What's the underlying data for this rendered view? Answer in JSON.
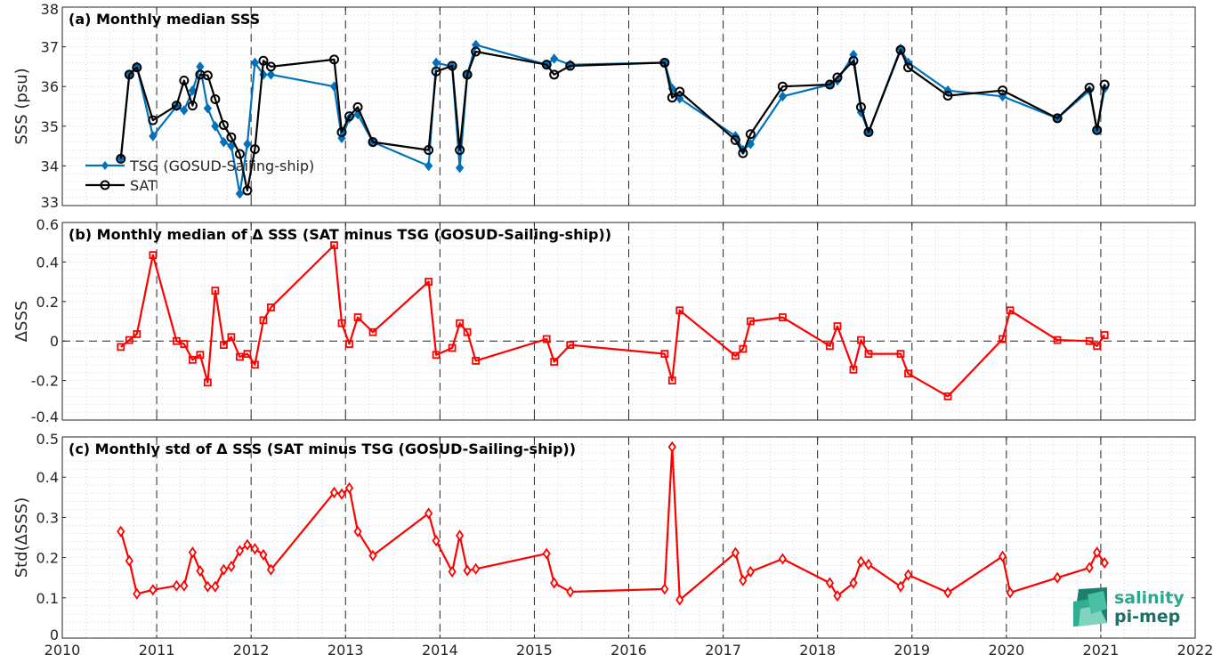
{
  "chart_data": [
    {
      "type": "line",
      "title": "(a) Monthly median SSS",
      "xlabel": "",
      "ylabel": "SSS (psu)",
      "xlim": [
        2010,
        2022
      ],
      "ylim": [
        33,
        38
      ],
      "xticks": [
        "2010",
        "2011",
        "2012",
        "2013",
        "2014",
        "2015",
        "2016",
        "2017",
        "2018",
        "2019",
        "2020",
        "2021",
        "2022"
      ],
      "yticks": [
        "33",
        "34",
        "35",
        "36",
        "37",
        "38"
      ],
      "grid": true,
      "legend_position": "bottom-left",
      "series": [
        {
          "name": "TSG (GOSUD-Sailing-ship)",
          "color": "#0072bd",
          "marker": "diamond",
          "x": [
            2010.62,
            2010.71,
            2010.79,
            2010.96,
            2011.21,
            2011.29,
            2011.38,
            2011.46,
            2011.54,
            2011.62,
            2011.71,
            2011.79,
            2011.88,
            2011.96,
            2012.04,
            2012.13,
            2012.21,
            2012.88,
            2012.96,
            2013.04,
            2013.13,
            2013.29,
            2013.88,
            2013.96,
            2014.13,
            2014.21,
            2014.29,
            2014.38,
            2015.13,
            2015.21,
            2015.38,
            2016.38,
            2016.46,
            2016.54,
            2017.13,
            2017.21,
            2017.29,
            2017.63,
            2018.13,
            2018.21,
            2018.38,
            2018.46,
            2018.54,
            2018.88,
            2018.96,
            2019.38,
            2019.96,
            2020.54,
            2020.88,
            2020.96,
            2021.04
          ],
          "y": [
            34.2,
            36.3,
            36.5,
            34.75,
            35.5,
            35.4,
            35.9,
            36.5,
            35.45,
            35.0,
            34.6,
            34.5,
            33.3,
            34.55,
            36.6,
            36.3,
            36.3,
            36.0,
            34.7,
            35.2,
            35.3,
            34.6,
            34.0,
            36.6,
            36.5,
            33.95,
            36.3,
            37.05,
            36.55,
            36.7,
            36.55,
            36.6,
            35.95,
            35.7,
            34.75,
            34.4,
            34.55,
            35.75,
            36.05,
            36.15,
            36.8,
            35.35,
            34.85,
            36.95,
            36.6,
            35.9,
            35.75,
            35.2,
            35.9,
            34.9,
            35.95
          ]
        },
        {
          "name": "SAT",
          "color": "#000000",
          "marker": "circle",
          "x": [
            2010.62,
            2010.71,
            2010.79,
            2010.96,
            2011.21,
            2011.29,
            2011.38,
            2011.46,
            2011.54,
            2011.62,
            2011.71,
            2011.79,
            2011.88,
            2011.96,
            2012.04,
            2012.13,
            2012.21,
            2012.88,
            2012.96,
            2013.04,
            2013.13,
            2013.29,
            2013.88,
            2013.96,
            2014.13,
            2014.21,
            2014.29,
            2014.38,
            2015.13,
            2015.21,
            2015.38,
            2016.38,
            2016.46,
            2016.54,
            2017.13,
            2017.21,
            2017.29,
            2017.63,
            2018.13,
            2018.21,
            2018.38,
            2018.46,
            2018.54,
            2018.88,
            2018.96,
            2019.38,
            2019.96,
            2020.54,
            2020.88,
            2020.96,
            2021.04
          ],
          "y": [
            34.18,
            36.3,
            36.48,
            35.15,
            35.52,
            36.15,
            35.52,
            36.3,
            36.28,
            35.68,
            35.03,
            34.72,
            34.3,
            33.38,
            34.42,
            36.65,
            36.5,
            36.68,
            34.85,
            35.25,
            35.48,
            34.6,
            34.4,
            36.38,
            36.52,
            34.4,
            36.3,
            36.88,
            36.55,
            36.3,
            36.52,
            36.6,
            35.72,
            35.87,
            34.65,
            34.32,
            34.8,
            36.0,
            36.05,
            36.23,
            36.65,
            35.48,
            34.85,
            36.92,
            36.48,
            35.77,
            35.9,
            35.2,
            35.97,
            34.9,
            36.05
          ]
        }
      ]
    },
    {
      "type": "line",
      "title": "(b) Monthly median of Δ SSS (SAT minus TSG (GOSUD-Sailing-ship))",
      "xlabel": "",
      "ylabel": "ΔSSS",
      "xlim": [
        2010,
        2022
      ],
      "ylim": [
        -0.4,
        0.6
      ],
      "xticks": [
        "2010",
        "2011",
        "2012",
        "2013",
        "2014",
        "2015",
        "2016",
        "2017",
        "2018",
        "2019",
        "2020",
        "2021",
        "2022"
      ],
      "yticks": [
        "-0.4",
        "-0.2",
        "0",
        "0.2",
        "0.4",
        "0.6"
      ],
      "grid": true,
      "series": [
        {
          "color": "#ff0000",
          "marker": "square",
          "x": [
            2010.62,
            2010.71,
            2010.79,
            2010.96,
            2011.21,
            2011.29,
            2011.38,
            2011.46,
            2011.54,
            2011.62,
            2011.71,
            2011.79,
            2011.88,
            2011.96,
            2012.04,
            2012.13,
            2012.21,
            2012.88,
            2012.96,
            2013.04,
            2013.13,
            2013.29,
            2013.88,
            2013.96,
            2014.13,
            2014.21,
            2014.29,
            2014.38,
            2015.13,
            2015.21,
            2015.38,
            2016.38,
            2016.46,
            2016.54,
            2017.13,
            2017.21,
            2017.29,
            2017.63,
            2018.13,
            2018.21,
            2018.38,
            2018.46,
            2018.54,
            2018.88,
            2018.96,
            2019.38,
            2019.96,
            2020.04,
            2020.54,
            2020.88,
            2020.96,
            2021.04
          ],
          "y": [
            -0.03,
            0.005,
            0.035,
            0.435,
            0.0,
            -0.015,
            -0.095,
            -0.07,
            -0.21,
            0.255,
            -0.02,
            0.02,
            -0.08,
            -0.065,
            -0.12,
            0.105,
            0.17,
            0.485,
            0.09,
            -0.015,
            0.12,
            0.045,
            0.3,
            -0.07,
            -0.035,
            0.09,
            0.045,
            -0.1,
            0.01,
            -0.105,
            -0.02,
            -0.065,
            -0.2,
            0.155,
            -0.075,
            -0.04,
            0.1,
            0.12,
            -0.025,
            0.075,
            -0.145,
            0.005,
            -0.065,
            -0.065,
            -0.165,
            -0.28,
            0.01,
            0.155,
            0.005,
            0.0,
            -0.025,
            0.03
          ]
        }
      ]
    },
    {
      "type": "line",
      "title": "(c) Monthly std of Δ SSS (SAT minus TSG (GOSUD-Sailing-ship))",
      "xlabel": "",
      "ylabel": "Std(ΔSSS)",
      "xlim": [
        2010,
        2022
      ],
      "ylim": [
        0,
        0.5
      ],
      "xticks": [
        "2010",
        "2011",
        "2012",
        "2013",
        "2014",
        "2015",
        "2016",
        "2017",
        "2018",
        "2019",
        "2020",
        "2021",
        "2022"
      ],
      "yticks": [
        "0",
        "0.1",
        "0.2",
        "0.3",
        "0.4",
        "0.5"
      ],
      "grid": true,
      "series": [
        {
          "color": "#ff0000",
          "marker": "diamond",
          "x": [
            2010.62,
            2010.71,
            2010.79,
            2010.96,
            2011.21,
            2011.29,
            2011.38,
            2011.46,
            2011.54,
            2011.62,
            2011.71,
            2011.79,
            2011.88,
            2011.96,
            2012.04,
            2012.13,
            2012.21,
            2012.88,
            2012.96,
            2013.04,
            2013.13,
            2013.29,
            2013.88,
            2013.96,
            2014.13,
            2014.21,
            2014.29,
            2014.38,
            2015.13,
            2015.21,
            2015.38,
            2016.38,
            2016.46,
            2016.54,
            2017.13,
            2017.21,
            2017.29,
            2017.63,
            2018.13,
            2018.21,
            2018.38,
            2018.46,
            2018.54,
            2018.88,
            2018.96,
            2019.38,
            2019.96,
            2020.04,
            2020.54,
            2020.88,
            2020.96,
            2021.04
          ],
          "y": [
            0.265,
            0.192,
            0.11,
            0.12,
            0.13,
            0.13,
            0.213,
            0.167,
            0.128,
            0.128,
            0.17,
            0.178,
            0.217,
            0.232,
            0.222,
            0.207,
            0.17,
            0.362,
            0.358,
            0.373,
            0.265,
            0.205,
            0.31,
            0.242,
            0.165,
            0.255,
            0.168,
            0.172,
            0.21,
            0.137,
            0.115,
            0.122,
            0.475,
            0.095,
            0.212,
            0.143,
            0.165,
            0.197,
            0.137,
            0.105,
            0.137,
            0.19,
            0.183,
            0.128,
            0.157,
            0.113,
            0.203,
            0.113,
            0.15,
            0.175,
            0.213,
            0.187
          ]
        }
      ]
    }
  ],
  "logo": {
    "line1": "salinity",
    "line2": "pi-mep"
  }
}
